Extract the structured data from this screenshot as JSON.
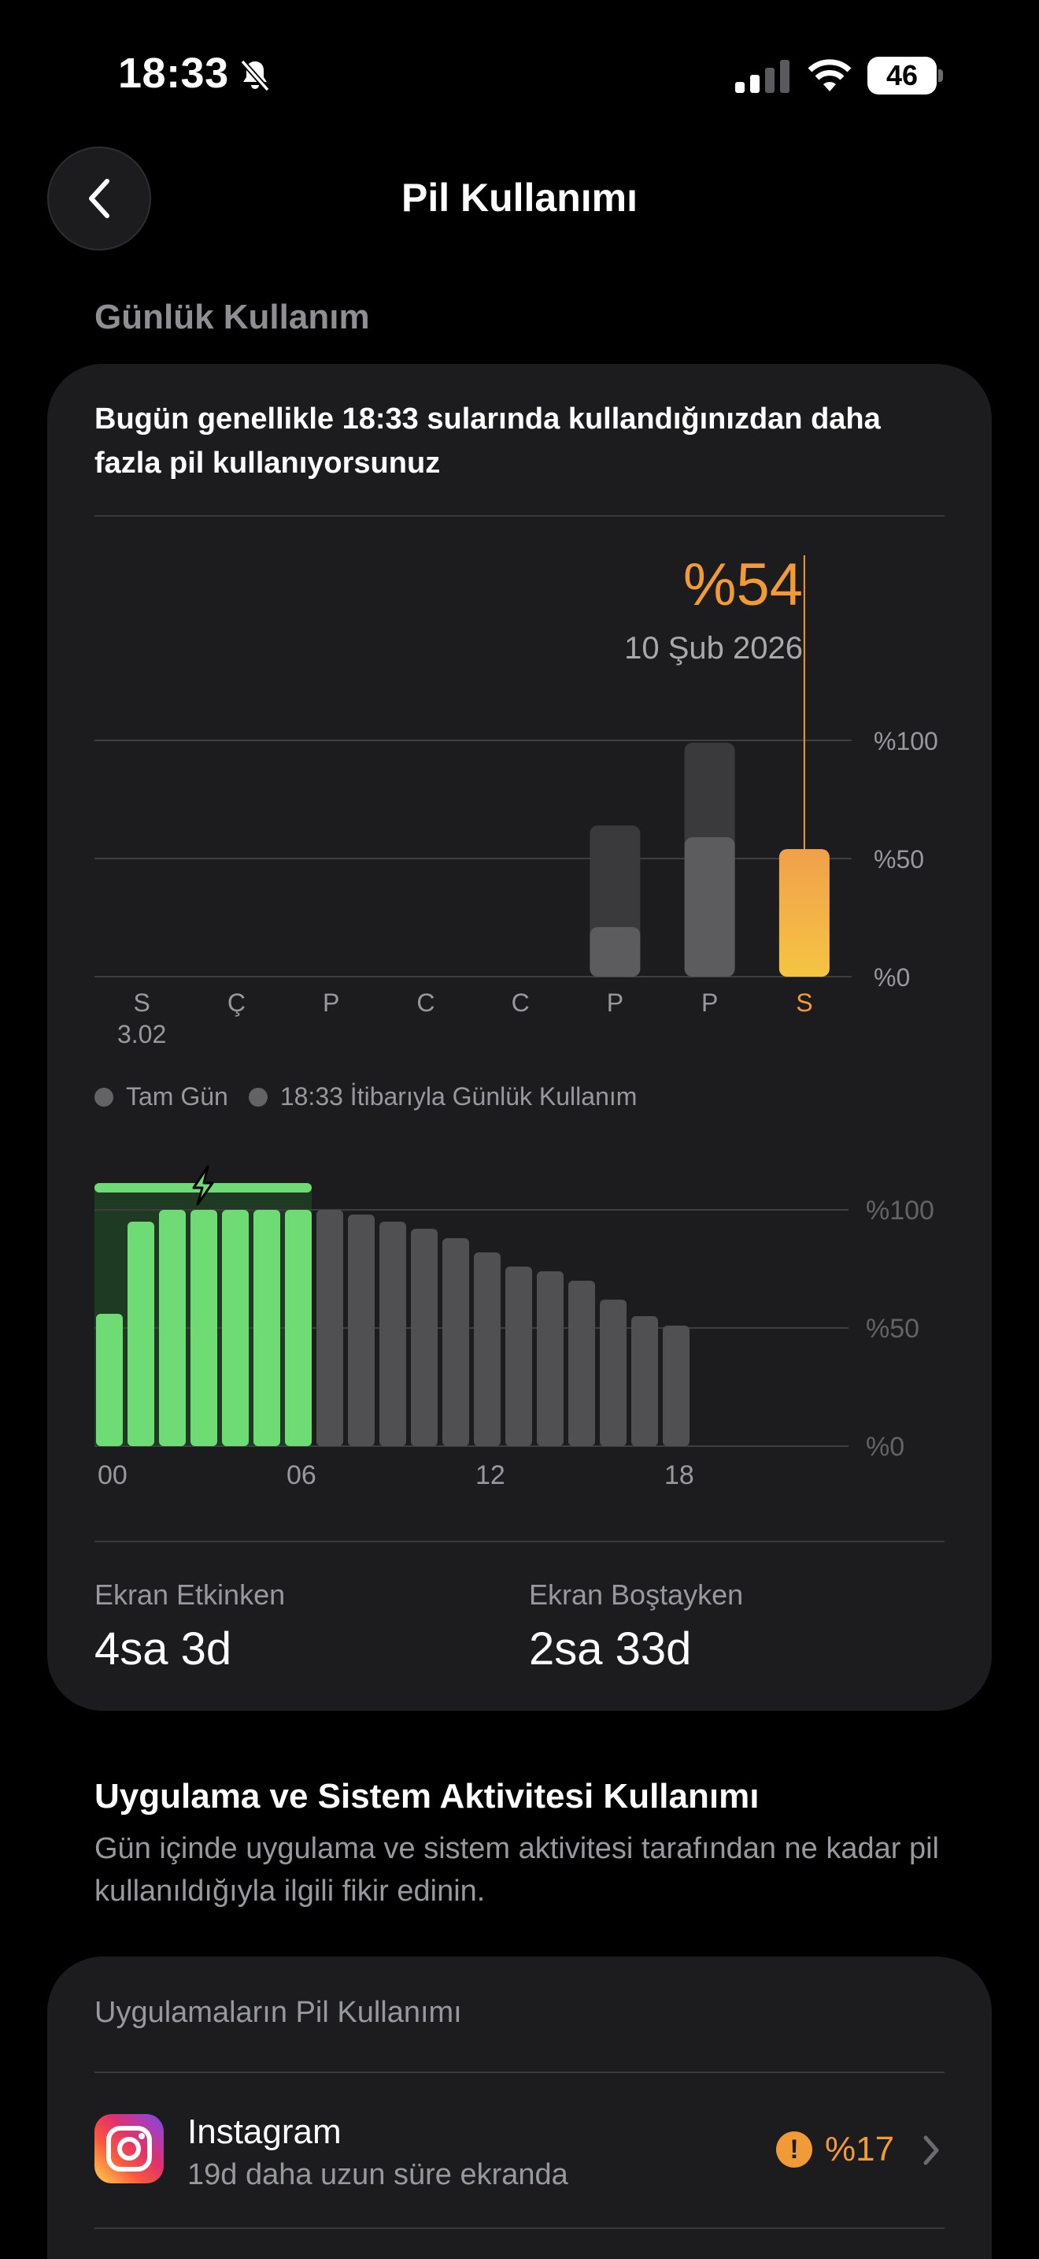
{
  "status_bar": {
    "time": "18:33",
    "battery_level": "46",
    "icons": [
      "bell-slash-icon",
      "cellular-signal-icon",
      "wifi-icon",
      "battery-icon"
    ]
  },
  "header": {
    "title": "Pil Kullanımı",
    "back_icon": "chevron-left-icon"
  },
  "daily_usage": {
    "section_label": "Günlük Kullanım",
    "message": "Bugün genellikle 18:33 sularında kullandığınızdan daha fazla pil kullanıyorsunuz",
    "selected_value": "%54",
    "selected_date": "10 Şub 2026",
    "legend": [
      "Tam Gün",
      "18:33 İtibarıyla Günlük Kullanım"
    ],
    "stats": [
      {
        "label": "Ekran Etkinken",
        "value": "4sa 3d"
      },
      {
        "label": "Ekran Boştayken",
        "value": "2sa 33d"
      }
    ]
  },
  "chart_data": [
    {
      "type": "bar",
      "categories": [
        "S",
        "Ç",
        "P",
        "C",
        "C",
        "P",
        "P",
        "S"
      ],
      "first_category_date": "3.02",
      "series": [
        {
          "name": "Tam Gün",
          "values": [
            0,
            0,
            0,
            0,
            0,
            64,
            99,
            null
          ]
        },
        {
          "name": "18:33 İtibarıyla Günlük Kullanım",
          "values": [
            0,
            0,
            0,
            0,
            0,
            21,
            59,
            54
          ]
        }
      ],
      "highlighted_index": 7,
      "y_tick_labels": [
        "%100",
        "%50",
        "%0"
      ],
      "ylim": [
        0,
        100
      ],
      "grid": true,
      "colors": {
        "highlight_top": "#f0a04b",
        "highlight_bottom": "#f5c542",
        "accent": "#f19a38",
        "full_day": "#3a3a3c",
        "partial": "#5c5c5e"
      }
    },
    {
      "type": "bar",
      "x": [
        "00",
        "01",
        "02",
        "03",
        "04",
        "05",
        "06",
        "07",
        "08",
        "09",
        "10",
        "11",
        "12",
        "13",
        "14",
        "15",
        "16",
        "17",
        "18"
      ],
      "x_tick_labels": [
        "00",
        "06",
        "12",
        "18"
      ],
      "values": [
        56,
        95,
        100,
        100,
        100,
        100,
        100,
        100,
        98,
        95,
        92,
        88,
        82,
        76,
        74,
        70,
        62,
        55,
        51
      ],
      "charging_hours": 7,
      "charging_indicator": "lightning-icon",
      "y_tick_labels": [
        "%100",
        "%50",
        "%0"
      ],
      "ylim": [
        0,
        100
      ],
      "grid": true,
      "colors": {
        "charging": "#6fdb75",
        "discharging": "#505052",
        "charging_bg": "#1f3a22"
      }
    }
  ],
  "activity": {
    "title": "Uygulama ve Sistem Aktivitesi Kullanımı",
    "description": "Gün içinde uygulama ve sistem aktivitesi tarafından ne kadar pil kullanıldığıyla ilgili fikir edinin.",
    "apps_card_title": "Uygulamaların Pil Kullanımı",
    "apps": [
      {
        "name": "Instagram",
        "subtitle": "19d daha uzun süre ekranda",
        "percent": "%17",
        "warning": "!",
        "icon": "instagram-icon"
      }
    ]
  }
}
